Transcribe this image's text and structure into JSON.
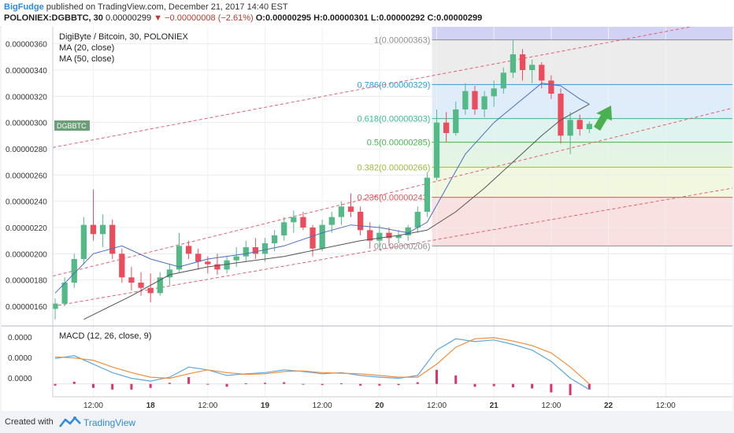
{
  "header": {
    "author": "BigFudge",
    "published_text": "published on TradingView.com, December 21, 2017 14:40 EST",
    "symbol_line": {
      "symbol": "POLONIEX:DGBBTC, 30",
      "last": "0.00000299",
      "change": "−0.00000008 (−2.61%)",
      "open": "O:0.00000295",
      "high": "H:0.00000301",
      "low": "L:0.00000292",
      "close": "C:0.00000299"
    }
  },
  "legend": {
    "title": "DigiByte / Bitcoin, 30, POLONIEX",
    "ma20": "MA (20, close)",
    "ma50": "MA (50, close)",
    "ticker_tag": "DGBBTC",
    "macd": "MACD (12, 26, close, 9)"
  },
  "footer": {
    "created_with": "Created with",
    "brand": "TradingView"
  },
  "chart_data": [
    {
      "type": "candlestick",
      "title": "DigiByte / Bitcoin, 30, POLONIEX",
      "ylim": [
        1.45e-06,
        3.73e-06
      ],
      "y_tick_labels": [
        "0.00000160",
        "0.00000180",
        "0.00000200",
        "0.00000220",
        "0.00000240",
        "0.00000260",
        "0.00000280",
        "0.00000300",
        "0.00000320",
        "0.00000340",
        "0.00000360"
      ],
      "x_tick_labels": [
        "12:00",
        "18",
        "12:00",
        "19",
        "12:00",
        "20",
        "12:00",
        "21",
        "12:00",
        "22",
        "12:00"
      ],
      "x_tick_hours": [
        12,
        24,
        36,
        48,
        60,
        72,
        84,
        96,
        108,
        120,
        132
      ],
      "x_range_hours": [
        3.5,
        146
      ],
      "series": [
        {
          "name": "DGBBTC",
          "points": [
            {
              "t": 4,
              "o": 1.58e-06,
              "h": 1.66e-06,
              "l": 1.5e-06,
              "c": 1.62e-06
            },
            {
              "t": 6,
              "o": 1.62e-06,
              "h": 1.82e-06,
              "l": 1.6e-06,
              "c": 1.78e-06
            },
            {
              "t": 8,
              "o": 1.78e-06,
              "h": 2e-06,
              "l": 1.74e-06,
              "c": 1.96e-06
            },
            {
              "t": 10,
              "o": 1.96e-06,
              "h": 2.28e-06,
              "l": 1.92e-06,
              "c": 2.22e-06
            },
            {
              "t": 12,
              "o": 2.22e-06,
              "h": 2.49e-06,
              "l": 2.1e-06,
              "c": 2.15e-06
            },
            {
              "t": 14,
              "o": 2.15e-06,
              "h": 2.3e-06,
              "l": 2.05e-06,
              "c": 2.22e-06
            },
            {
              "t": 16,
              "o": 2.22e-06,
              "h": 2.26e-06,
              "l": 1.96e-06,
              "c": 2e-06
            },
            {
              "t": 18,
              "o": 2e-06,
              "h": 2.04e-06,
              "l": 1.78e-06,
              "c": 1.82e-06
            },
            {
              "t": 20,
              "o": 1.82e-06,
              "h": 1.9e-06,
              "l": 1.72e-06,
              "c": 1.78e-06
            },
            {
              "t": 22,
              "o": 1.78e-06,
              "h": 1.86e-06,
              "l": 1.68e-06,
              "c": 1.74e-06
            },
            {
              "t": 24,
              "o": 1.74e-06,
              "h": 1.85e-06,
              "l": 1.63e-06,
              "c": 1.7e-06
            },
            {
              "t": 26,
              "o": 1.7e-06,
              "h": 1.86e-06,
              "l": 1.68e-06,
              "c": 1.82e-06
            },
            {
              "t": 28,
              "o": 1.82e-06,
              "h": 1.92e-06,
              "l": 1.76e-06,
              "c": 1.88e-06
            },
            {
              "t": 30,
              "o": 1.88e-06,
              "h": 2.16e-06,
              "l": 1.86e-06,
              "c": 2.06e-06
            },
            {
              "t": 32,
              "o": 2.06e-06,
              "h": 2.1e-06,
              "l": 1.96e-06,
              "c": 2e-06
            },
            {
              "t": 34,
              "o": 2e-06,
              "h": 2.04e-06,
              "l": 1.88e-06,
              "c": 1.94e-06
            },
            {
              "t": 36,
              "o": 1.94e-06,
              "h": 1.98e-06,
              "l": 1.85e-06,
              "c": 1.92e-06
            },
            {
              "t": 38,
              "o": 1.92e-06,
              "h": 2e-06,
              "l": 1.84e-06,
              "c": 1.88e-06
            },
            {
              "t": 40,
              "o": 1.88e-06,
              "h": 1.98e-06,
              "l": 1.85e-06,
              "c": 1.95e-06
            },
            {
              "t": 42,
              "o": 1.95e-06,
              "h": 2.05e-06,
              "l": 1.9e-06,
              "c": 1.98e-06
            },
            {
              "t": 44,
              "o": 1.98e-06,
              "h": 2.1e-06,
              "l": 1.94e-06,
              "c": 2.05e-06
            },
            {
              "t": 46,
              "o": 2.05e-06,
              "h": 2.12e-06,
              "l": 1.96e-06,
              "c": 2e-06
            },
            {
              "t": 48,
              "o": 2e-06,
              "h": 2.12e-06,
              "l": 1.94e-06,
              "c": 2.08e-06
            },
            {
              "t": 50,
              "o": 2.08e-06,
              "h": 2.18e-06,
              "l": 2.02e-06,
              "c": 2.14e-06
            },
            {
              "t": 52,
              "o": 2.14e-06,
              "h": 2.28e-06,
              "l": 2.1e-06,
              "c": 2.24e-06
            },
            {
              "t": 54,
              "o": 2.24e-06,
              "h": 2.33e-06,
              "l": 2.16e-06,
              "c": 2.28e-06
            },
            {
              "t": 56,
              "o": 2.28e-06,
              "h": 2.32e-06,
              "l": 2.18e-06,
              "c": 2.2e-06
            },
            {
              "t": 58,
              "o": 2.2e-06,
              "h": 2.22e-06,
              "l": 1.98e-06,
              "c": 2.04e-06
            },
            {
              "t": 60,
              "o": 2.04e-06,
              "h": 2.26e-06,
              "l": 2.02e-06,
              "c": 2.22e-06
            },
            {
              "t": 62,
              "o": 2.22e-06,
              "h": 2.32e-06,
              "l": 2.16e-06,
              "c": 2.28e-06
            },
            {
              "t": 64,
              "o": 2.28e-06,
              "h": 2.4e-06,
              "l": 2.22e-06,
              "c": 2.36e-06
            },
            {
              "t": 66,
              "o": 2.36e-06,
              "h": 2.46e-06,
              "l": 2.28e-06,
              "c": 2.32e-06
            },
            {
              "t": 68,
              "o": 2.32e-06,
              "h": 2.36e-06,
              "l": 2.14e-06,
              "c": 2.18e-06
            },
            {
              "t": 70,
              "o": 2.18e-06,
              "h": 2.24e-06,
              "l": 2.04e-06,
              "c": 2.1e-06
            },
            {
              "t": 72,
              "o": 2.1e-06,
              "h": 2.22e-06,
              "l": 2.05e-06,
              "c": 2.16e-06
            },
            {
              "t": 74,
              "o": 2.16e-06,
              "h": 2.2e-06,
              "l": 2.06e-06,
              "c": 2.12e-06
            },
            {
              "t": 76,
              "o": 2.12e-06,
              "h": 2.18e-06,
              "l": 2.08e-06,
              "c": 2.14e-06
            },
            {
              "t": 78,
              "o": 2.14e-06,
              "h": 2.22e-06,
              "l": 2.1e-06,
              "c": 2.2e-06
            },
            {
              "t": 80,
              "o": 2.2e-06,
              "h": 2.36e-06,
              "l": 2.16e-06,
              "c": 2.32e-06
            },
            {
              "t": 82,
              "o": 2.32e-06,
              "h": 2.62e-06,
              "l": 2.28e-06,
              "c": 2.58e-06
            },
            {
              "t": 84,
              "o": 2.58e-06,
              "h": 3.1e-06,
              "l": 2.56e-06,
              "c": 3e-06
            },
            {
              "t": 86,
              "o": 3e-06,
              "h": 3.08e-06,
              "l": 2.85e-06,
              "c": 2.92e-06
            },
            {
              "t": 88,
              "o": 2.92e-06,
              "h": 3.16e-06,
              "l": 2.9e-06,
              "c": 3.1e-06
            },
            {
              "t": 90,
              "o": 3.1e-06,
              "h": 3.3e-06,
              "l": 3.06e-06,
              "c": 3.24e-06
            },
            {
              "t": 92,
              "o": 3.24e-06,
              "h": 3.28e-06,
              "l": 3.06e-06,
              "c": 3.1e-06
            },
            {
              "t": 94,
              "o": 3.1e-06,
              "h": 3.24e-06,
              "l": 3.04e-06,
              "c": 3.2e-06
            },
            {
              "t": 96,
              "o": 3.2e-06,
              "h": 3.32e-06,
              "l": 3.12e-06,
              "c": 3.26e-06
            },
            {
              "t": 98,
              "o": 3.26e-06,
              "h": 3.42e-06,
              "l": 3.22e-06,
              "c": 3.38e-06
            },
            {
              "t": 100,
              "o": 3.38e-06,
              "h": 3.63e-06,
              "l": 3.34e-06,
              "c": 3.52e-06
            },
            {
              "t": 102,
              "o": 3.52e-06,
              "h": 3.56e-06,
              "l": 3.32e-06,
              "c": 3.4e-06
            },
            {
              "t": 104,
              "o": 3.4e-06,
              "h": 3.48e-06,
              "l": 3.3e-06,
              "c": 3.44e-06
            },
            {
              "t": 106,
              "o": 3.44e-06,
              "h": 3.46e-06,
              "l": 3.26e-06,
              "c": 3.32e-06
            },
            {
              "t": 108,
              "o": 3.32e-06,
              "h": 3.36e-06,
              "l": 3.18e-06,
              "c": 3.22e-06
            },
            {
              "t": 110,
              "o": 3.22e-06,
              "h": 3.26e-06,
              "l": 2.84e-06,
              "c": 2.9e-06
            },
            {
              "t": 112,
              "o": 2.9e-06,
              "h": 3.08e-06,
              "l": 2.76e-06,
              "c": 3.02e-06
            },
            {
              "t": 114,
              "o": 3.02e-06,
              "h": 3.06e-06,
              "l": 2.9e-06,
              "c": 2.95e-06
            },
            {
              "t": 116,
              "o": 2.95e-06,
              "h": 3.01e-06,
              "l": 2.92e-06,
              "c": 2.99e-06
            }
          ]
        },
        {
          "name": "MA (20, close)",
          "points": [
            [
              4,
              1.7e-06
            ],
            [
              12,
              2e-06
            ],
            [
              18,
              2.06e-06
            ],
            [
              24,
              1.96e-06
            ],
            [
              30,
              1.9e-06
            ],
            [
              36,
              1.96e-06
            ],
            [
              44,
              2e-06
            ],
            [
              52,
              2.06e-06
            ],
            [
              60,
              2.16e-06
            ],
            [
              66,
              2.22e-06
            ],
            [
              72,
              2.2e-06
            ],
            [
              78,
              2.16e-06
            ],
            [
              82,
              2.24e-06
            ],
            [
              86,
              2.5e-06
            ],
            [
              90,
              2.76e-06
            ],
            [
              96,
              3e-06
            ],
            [
              102,
              3.18e-06
            ],
            [
              106,
              3.3e-06
            ],
            [
              110,
              3.28e-06
            ],
            [
              114,
              3.18e-06
            ],
            [
              116,
              3.14e-06
            ]
          ]
        },
        {
          "name": "MA (50, close)",
          "points": [
            [
              10,
              1.5e-06
            ],
            [
              20,
              1.68e-06
            ],
            [
              28,
              1.84e-06
            ],
            [
              36,
              1.9e-06
            ],
            [
              44,
              1.94e-06
            ],
            [
              52,
              1.98e-06
            ],
            [
              60,
              2.04e-06
            ],
            [
              68,
              2.1e-06
            ],
            [
              76,
              2.14e-06
            ],
            [
              82,
              2.18e-06
            ],
            [
              88,
              2.32e-06
            ],
            [
              94,
              2.5e-06
            ],
            [
              100,
              2.7e-06
            ],
            [
              106,
              2.9e-06
            ],
            [
              110,
              3.02e-06
            ],
            [
              116,
              3.14e-06
            ]
          ]
        }
      ],
      "fibonacci": [
        {
          "label": "1(0.00000363)",
          "value": 3.63e-06,
          "color": "#8e8e8e"
        },
        {
          "label": "0.786(0.00000329)",
          "value": 3.29e-06,
          "color": "#2a9fd6"
        },
        {
          "label": "0.618(0.00000303)",
          "value": 3.03e-06,
          "color": "#3cba8c"
        },
        {
          "label": "0.5(0.00000285)",
          "value": 2.85e-06,
          "color": "#4caf50"
        },
        {
          "label": "0.382(0.00000266)",
          "value": 2.66e-06,
          "color": "#9bbf2e"
        },
        {
          "label": "0.236(0.00000243)",
          "value": 2.43e-06,
          "color": "#e05555"
        },
        {
          "label": "0(0.00000206)",
          "value": 2.06e-06,
          "color": "#8e8e8e"
        }
      ],
      "fib_zone_colors": [
        "#c3c3f0",
        "#e6e6e6",
        "#d4e6f8",
        "#d4f0ea",
        "#dcf2dc",
        "#eef5d6",
        "#f7d7d7"
      ],
      "fib_start_hour": 83,
      "channel_lines": [
        {
          "p1": [
            3.5,
            2.81e-06
          ],
          "p2": [
            146,
            3.79e-06
          ]
        },
        {
          "p1": [
            3.5,
            1.83e-06
          ],
          "p2": [
            146,
            3.11e-06
          ]
        },
        {
          "p1": [
            3.5,
            1.6e-06
          ],
          "p2": [
            146,
            2.5e-06
          ]
        }
      ],
      "up_color": "#53b987",
      "down_color": "#eb4d5c",
      "ma20_color": "#4a6fbf",
      "ma50_color": "#555555"
    },
    {
      "type": "line",
      "title": "MACD (12, 26, close, 9)",
      "ylim": [
        -2e-08,
        1e-07
      ],
      "y_tick_labels": [
        "0.0000",
        "0.0000",
        "0.0000"
      ],
      "macd_line": [
        [
          4,
          4.5e-08
        ],
        [
          8,
          5e-08
        ],
        [
          12,
          3.5e-08
        ],
        [
          16,
          2e-08
        ],
        [
          20,
          1e-08
        ],
        [
          24,
          5e-09
        ],
        [
          28,
          1.2e-08
        ],
        [
          32,
          3e-08
        ],
        [
          36,
          2.5e-08
        ],
        [
          40,
          1.5e-08
        ],
        [
          44,
          1.8e-08
        ],
        [
          48,
          2e-08
        ],
        [
          52,
          2.5e-08
        ],
        [
          56,
          2.2e-08
        ],
        [
          60,
          1.8e-08
        ],
        [
          64,
          2e-08
        ],
        [
          68,
          1.5e-08
        ],
        [
          72,
          1.2e-08
        ],
        [
          76,
          1e-08
        ],
        [
          80,
          1.5e-08
        ],
        [
          84,
          6e-08
        ],
        [
          88,
          8e-08
        ],
        [
          92,
          7.5e-08
        ],
        [
          96,
          7.8e-08
        ],
        [
          100,
          7e-08
        ],
        [
          104,
          6e-08
        ],
        [
          108,
          4e-08
        ],
        [
          112,
          1e-08
        ],
        [
          116,
          -1e-08
        ]
      ],
      "signal_line": [
        [
          4,
          4.8e-08
        ],
        [
          8,
          4.6e-08
        ],
        [
          12,
          4.2e-08
        ],
        [
          16,
          3e-08
        ],
        [
          20,
          2e-08
        ],
        [
          24,
          1.2e-08
        ],
        [
          28,
          1e-08
        ],
        [
          32,
          1.8e-08
        ],
        [
          36,
          2.5e-08
        ],
        [
          40,
          2e-08
        ],
        [
          44,
          1.7e-08
        ],
        [
          48,
          1.8e-08
        ],
        [
          52,
          2.2e-08
        ],
        [
          56,
          2.3e-08
        ],
        [
          60,
          2e-08
        ],
        [
          64,
          1.9e-08
        ],
        [
          68,
          1.8e-08
        ],
        [
          72,
          1.5e-08
        ],
        [
          76,
          1.2e-08
        ],
        [
          80,
          1.2e-08
        ],
        [
          84,
          3.5e-08
        ],
        [
          88,
          6.5e-08
        ],
        [
          92,
          8e-08
        ],
        [
          96,
          8.2e-08
        ],
        [
          100,
          7.6e-08
        ],
        [
          104,
          6.8e-08
        ],
        [
          108,
          5.5e-08
        ],
        [
          112,
          3e-08
        ],
        [
          116,
          0.0
        ]
      ],
      "macd_color": "#5fa8e0",
      "signal_color": "#f28e3c",
      "hist_color": "#e0316e"
    }
  ]
}
